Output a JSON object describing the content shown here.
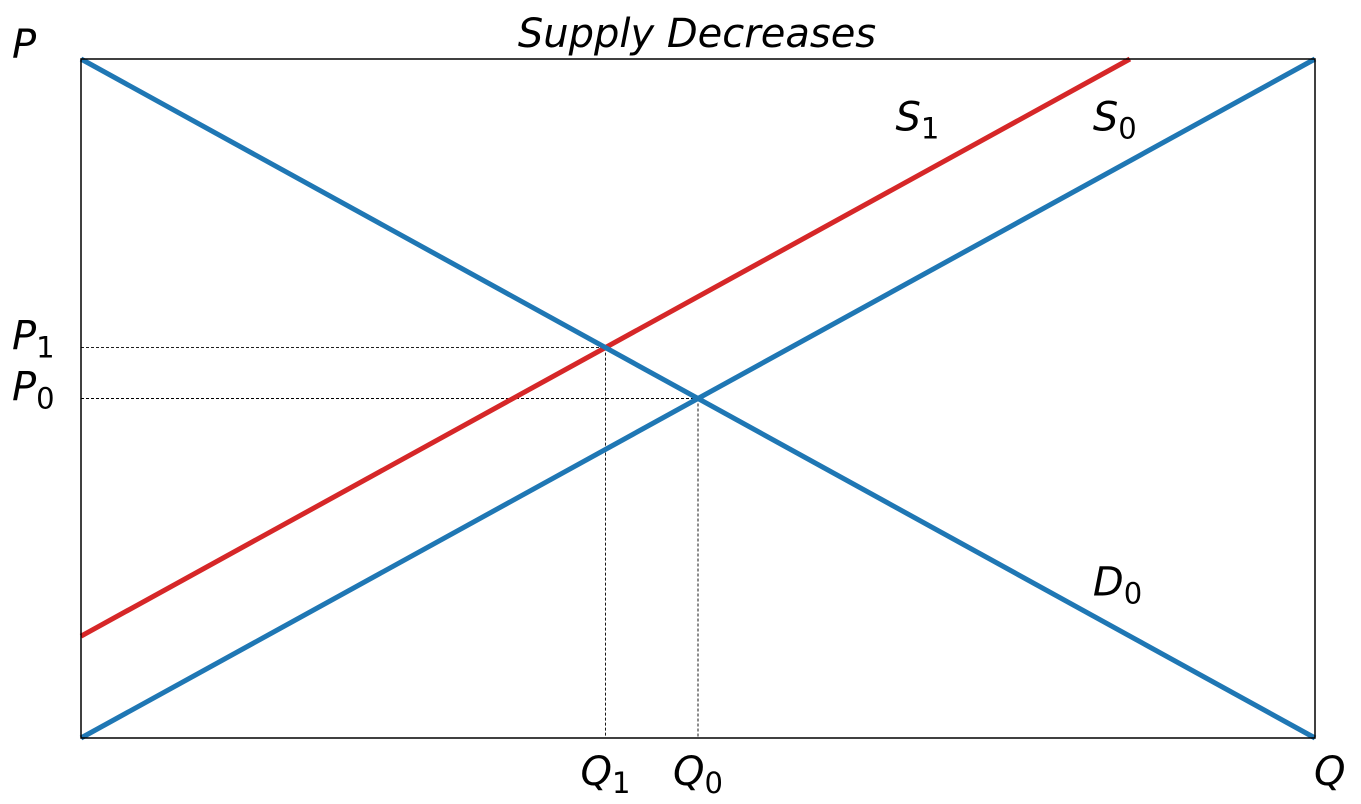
{
  "chart_data": {
    "type": "line",
    "title": "Supply Decreases",
    "xlabel": "Q",
    "ylabel": "P",
    "xlim": [
      0,
      1
    ],
    "ylim": [
      0,
      1
    ],
    "grid": false,
    "legend": "none",
    "series": [
      {
        "name": "S",
        "subscript": "0",
        "color": "#1f77b4",
        "x": [
          0,
          1
        ],
        "y": [
          0,
          1
        ]
      },
      {
        "name": "S",
        "subscript": "1",
        "color": "#d62728",
        "x": [
          0,
          0.85
        ],
        "y": [
          0.15,
          1
        ]
      },
      {
        "name": "D",
        "subscript": "0",
        "color": "#1f77b4",
        "x": [
          0,
          1
        ],
        "y": [
          1,
          0
        ]
      }
    ],
    "equilibria": [
      {
        "q": 0.5,
        "p": 0.5,
        "q_label": "Q",
        "q_sub": "0",
        "p_label": "P",
        "p_sub": "0"
      },
      {
        "q": 0.425,
        "p": 0.575,
        "q_label": "Q",
        "q_sub": "1",
        "p_label": "P",
        "p_sub": "1"
      }
    ],
    "curve_labels": [
      {
        "text": "S",
        "sub": "1",
        "x": 0.66,
        "y": 0.895
      },
      {
        "text": "S",
        "sub": "0",
        "x": 0.82,
        "y": 0.895
      },
      {
        "text": "D",
        "sub": "0",
        "x": 0.82,
        "y": 0.21
      }
    ]
  }
}
